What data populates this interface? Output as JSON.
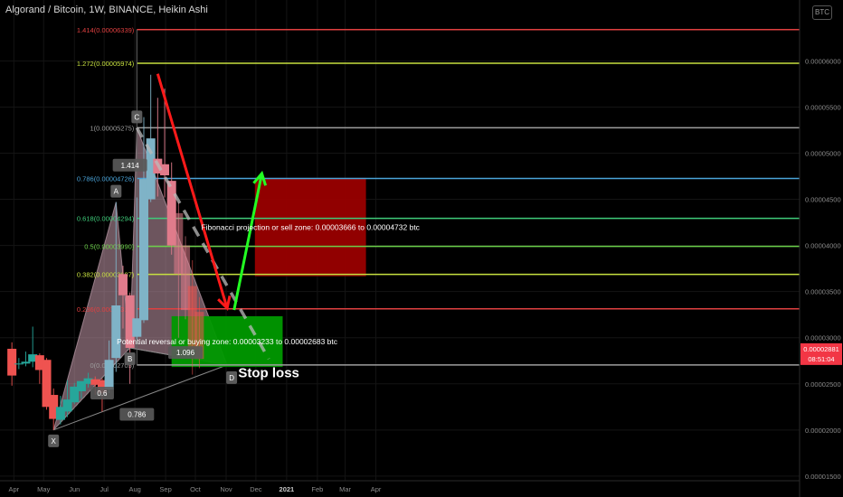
{
  "header": {
    "title": "Algorand / Bitcoin, 1W, BINANCE, Heikin Ashi",
    "badge": "BTC"
  },
  "chart_data": {
    "type": "candlestick",
    "style": "Heikin Ashi",
    "ylim": [
      1.45e-05,
      6.66e-05
    ],
    "y_ticks": [
      "0.00006000",
      "0.00005500",
      "0.00005000",
      "0.00004500",
      "0.00004000",
      "0.00003500",
      "0.00003000",
      "0.00002500",
      "0.00002000",
      "0.00001500"
    ],
    "y_tick_values": [
      6e-05,
      5.5e-05,
      5e-05,
      4.5e-05,
      4e-05,
      3.5e-05,
      3e-05,
      2.5e-05,
      2e-05,
      1.5e-05
    ],
    "price_label": {
      "value": 2.881e-05,
      "text": "0.00002881",
      "countdown": "08:51:04",
      "color": "#f23645"
    },
    "x_ticks": [
      "Apr",
      "May",
      "Jun",
      "Jul",
      "Aug",
      "Sep",
      "Oct",
      "Nov",
      "Dec",
      "2021",
      "Feb",
      "Mar",
      "Apr"
    ],
    "weeks": [
      "2020-03-30",
      "2020-04-06",
      "2020-04-13",
      "2020-04-20",
      "2020-04-27",
      "2020-05-04",
      "2020-05-11",
      "2020-05-18",
      "2020-05-25",
      "2020-06-01",
      "2020-06-08",
      "2020-06-15",
      "2020-06-22",
      "2020-06-29",
      "2020-07-06",
      "2020-07-13",
      "2020-07-20",
      "2020-07-27",
      "2020-08-03",
      "2020-08-10",
      "2020-08-17",
      "2020-08-24",
      "2020-08-31",
      "2020-09-07",
      "2020-09-14",
      "2020-09-21",
      "2020-09-28",
      "2020-10-05"
    ],
    "candles": [
      {
        "o": 2.88e-05,
        "h": 2.95e-05,
        "l": 2.48e-05,
        "c": 2.59e-05
      },
      {
        "o": 2.72e-05,
        "h": 2.78e-05,
        "l": 2.66e-05,
        "c": 2.72e-05
      },
      {
        "o": 2.72e-05,
        "h": 2.85e-05,
        "l": 2.69e-05,
        "c": 2.74e-05
      },
      {
        "o": 2.74e-05,
        "h": 3.12e-05,
        "l": 2.68e-05,
        "c": 2.82e-05
      },
      {
        "o": 2.81e-05,
        "h": 2.83e-05,
        "l": 2.5e-05,
        "c": 2.65e-05
      },
      {
        "o": 2.76e-05,
        "h": 2.78e-05,
        "l": 2.22e-05,
        "c": 2.25e-05
      },
      {
        "o": 2.38e-05,
        "h": 2.45e-05,
        "l": 2e-05,
        "c": 2.12e-05
      },
      {
        "o": 2.11e-05,
        "h": 2.37e-05,
        "l": 2.06e-05,
        "c": 2.25e-05
      },
      {
        "o": 2.2e-05,
        "h": 2.54e-05,
        "l": 2.14e-05,
        "c": 2.33e-05
      },
      {
        "o": 2.3e-05,
        "h": 2.51e-05,
        "l": 2.28e-05,
        "c": 2.47e-05
      },
      {
        "o": 2.42e-05,
        "h": 2.52e-05,
        "l": 2.34e-05,
        "c": 2.53e-05
      },
      {
        "o": 2.5e-05,
        "h": 2.62e-05,
        "l": 2.46e-05,
        "c": 2.56e-05
      },
      {
        "o": 2.55e-05,
        "h": 2.58e-05,
        "l": 2.38e-05,
        "c": 2.49e-05
      },
      {
        "o": 2.54e-05,
        "h": 2.56e-05,
        "l": 2.2e-05,
        "c": 2.4e-05
      },
      {
        "o": 2.44e-05,
        "h": 2.97e-05,
        "l": 2.4e-05,
        "c": 2.76e-05
      },
      {
        "o": 2.78e-05,
        "h": 4.47e-05,
        "l": 2.63e-05,
        "c": 3.35e-05
      },
      {
        "o": 3.69e-05,
        "h": 3.78e-05,
        "l": 3.1e-05,
        "c": 3.46e-05
      },
      {
        "o": 3.46e-05,
        "h": 3.49e-05,
        "l": 2.5e-05,
        "c": 2.89e-05
      },
      {
        "o": 3.01e-05,
        "h": 4.52e-05,
        "l": 2.98e-05,
        "c": 3.21e-05
      },
      {
        "o": 3.19e-05,
        "h": 5.39e-05,
        "l": 3.16e-05,
        "c": 4.72e-05
      },
      {
        "o": 4.5e-05,
        "h": 5.85e-05,
        "l": 4.47e-05,
        "c": 5.16e-05
      },
      {
        "o": 4.94e-05,
        "h": 5.6e-05,
        "l": 4.53e-05,
        "c": 4.78e-05
      },
      {
        "o": 4.88e-05,
        "h": 5.7e-05,
        "l": 4.52e-05,
        "c": 4.76e-05
      },
      {
        "o": 4.7e-05,
        "h": 4.9e-05,
        "l": 3.9e-05,
        "c": 4e-05
      },
      {
        "o": 4.35e-05,
        "h": 4.47e-05,
        "l": 3e-05,
        "c": 3.69e-05
      },
      {
        "o": 4e-05,
        "h": 4.1e-05,
        "l": 3.2e-05,
        "c": 3.3e-05
      },
      {
        "o": 3.56e-05,
        "h": 3.84e-05,
        "l": 2.6e-05,
        "c": 2.87e-05
      },
      {
        "o": 3.28e-05,
        "h": 3.44e-05,
        "l": 2.67e-05,
        "c": 2.77e-05
      }
    ],
    "fib_levels": [
      {
        "label": "1.414(0.00006339)",
        "value": 6.339e-05,
        "color": "#e04040"
      },
      {
        "label": "1.272(0.00005974)",
        "value": 5.974e-05,
        "color": "#c7e040"
      },
      {
        "label": "1(0.00005275)",
        "value": 5.275e-05,
        "color": "#9e9e9e"
      },
      {
        "label": "0.786(0.00004726)",
        "value": 4.726e-05,
        "color": "#4aa3d8"
      },
      {
        "label": "0.618(0.00004294)",
        "value": 4.294e-05,
        "color": "#3fcc7a"
      },
      {
        "label": "0.5(0.00003990)",
        "value": 3.99e-05,
        "color": "#6cd04a"
      },
      {
        "label": "0.382(0.00003687)",
        "value": 3.687e-05,
        "color": "#c7e040"
      },
      {
        "label": "0.236(0.00003313)",
        "value": 3.313e-05,
        "color": "#e04040"
      },
      {
        "label": "0(0.00002705)",
        "value": 2.705e-05,
        "color": "#9e9e9e"
      }
    ],
    "pattern_points": [
      {
        "label": "X",
        "week": "2020-05-11",
        "value": 2e-05
      },
      {
        "label": "A",
        "week": "2020-07-13",
        "value": 4.47e-05
      },
      {
        "label": "B",
        "week": "2020-07-27",
        "value": 2.89e-05
      },
      {
        "label": "C",
        "week": "2020-08-03",
        "value": 5.275e-05
      },
      {
        "label": "D",
        "week": "2020-11-02",
        "value": 2.705e-05
      }
    ],
    "ratio_labels": [
      {
        "label": "0.6",
        "week": "2020-06-29",
        "value": 2.4e-05
      },
      {
        "label": "1.414",
        "week": "2020-07-27",
        "value": 4.87e-05
      },
      {
        "label": "0.786",
        "week": "2020-08-03",
        "value": 2.17e-05
      },
      {
        "label": "1.096",
        "week": "2020-09-21",
        "value": 2.84e-05
      }
    ],
    "sell_zone": {
      "text": "Fibonacci projection or sell zone: 0.00003666 to 0.00004732 btc",
      "from": 3.666e-05,
      "to": 4.732e-05,
      "start": "2020-11-30",
      "end": "2021-03-22",
      "color": "#990000"
    },
    "buy_zone": {
      "text": "Potential reversal or buying zone: 0.00003233 to 0.00002683 btc",
      "from": 2.683e-05,
      "to": 3.233e-05,
      "start": "2020-09-07",
      "end": "2020-12-28",
      "color": "#009900"
    },
    "stop_loss": {
      "text": "Stop loss",
      "week": "2020-12-14",
      "value": 2.57e-05
    },
    "arrows": [
      {
        "color": "#ff1a1a",
        "from_week": "2020-08-24",
        "from": 5.86e-05,
        "to_week": "2020-11-02",
        "to": 3.32e-05
      },
      {
        "color": "#22ff22",
        "from_week": "2020-11-09",
        "from": 3.3e-05,
        "to_week": "2020-12-07",
        "to": 4.78e-05
      }
    ],
    "projection_line": {
      "color": "#bbbbbb",
      "from_week": "2020-08-03",
      "from": 5.275e-05,
      "to_week": "2020-12-14",
      "to": 2.77e-05
    }
  }
}
